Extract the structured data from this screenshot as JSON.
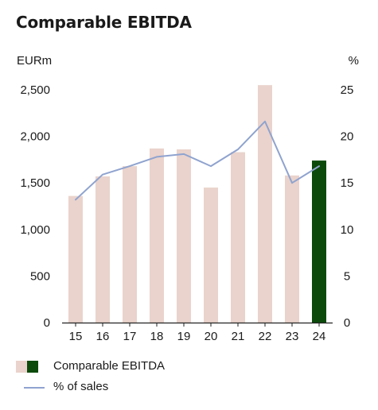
{
  "chart_data": {
    "type": "bar",
    "title": "Comparable EBITDA",
    "y_left_unit": "EURm",
    "y_right_unit": "%",
    "categories": [
      "15",
      "16",
      "17",
      "18",
      "19",
      "20",
      "21",
      "22",
      "23",
      "24"
    ],
    "series": [
      {
        "name": "Comparable EBITDA",
        "type": "bar",
        "axis": "left",
        "values": [
          1360,
          1570,
          1680,
          1870,
          1860,
          1450,
          1830,
          2550,
          1580,
          1740
        ]
      },
      {
        "name": "% of sales",
        "type": "line",
        "axis": "right",
        "values": [
          13.2,
          15.9,
          16.8,
          17.8,
          18.1,
          16.8,
          18.6,
          21.6,
          15.0,
          16.8
        ]
      }
    ],
    "y_left_ticks": [
      "0",
      "500",
      "1,000",
      "1,500",
      "2,000",
      "2,500"
    ],
    "y_left_tick_values": [
      0,
      500,
      1000,
      1500,
      2000,
      2500
    ],
    "y_left_lim": [
      0,
      2500
    ],
    "y_right_ticks": [
      "0",
      "5",
      "10",
      "15",
      "20",
      "25"
    ],
    "y_right_tick_values": [
      0,
      5,
      10,
      15,
      20,
      25
    ],
    "y_right_lim": [
      0,
      25
    ],
    "grid": false,
    "legend_position": "bottom-left",
    "colors": {
      "bar": "#ead3cc",
      "bar_highlight": "#0c4a0c",
      "line": "#8fa3cf",
      "axis": "#222222"
    },
    "highlight_last_bar": true
  }
}
